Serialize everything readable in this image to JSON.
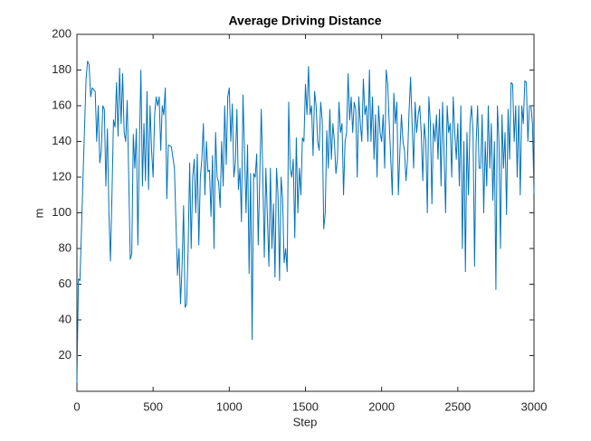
{
  "chart_data": {
    "type": "line",
    "title": "Average Driving Distance",
    "x_label": "Step",
    "y_label": "m",
    "xlim": [
      0,
      3000
    ],
    "xticks": [
      0,
      500,
      1000,
      1500,
      2000,
      2500,
      3000
    ],
    "ylim": [
      0,
      200
    ],
    "yticks": [
      20,
      40,
      60,
      80,
      100,
      120,
      140,
      160,
      180,
      200
    ],
    "grid": false,
    "color": "#0072bd",
    "x": [
      0,
      10,
      20,
      40,
      60,
      70,
      80,
      90,
      100,
      110,
      120,
      130,
      140,
      150,
      160,
      170,
      180,
      190,
      200,
      210,
      220,
      230,
      240,
      250,
      260,
      270,
      280,
      290,
      300,
      310,
      320,
      330,
      340,
      350,
      360,
      370,
      380,
      390,
      400,
      410,
      420,
      430,
      440,
      450,
      460,
      470,
      480,
      490,
      500,
      510,
      520,
      530,
      540,
      550,
      560,
      570,
      580,
      590,
      600,
      620,
      640,
      660,
      670,
      680,
      690,
      700,
      710,
      720,
      730,
      740,
      750,
      760,
      770,
      780,
      790,
      800,
      810,
      820,
      830,
      840,
      850,
      860,
      870,
      880,
      890,
      900,
      910,
      920,
      930,
      940,
      950,
      960,
      970,
      980,
      990,
      1000,
      1010,
      1020,
      1030,
      1040,
      1050,
      1060,
      1070,
      1080,
      1090,
      1100,
      1110,
      1120,
      1130,
      1140,
      1150,
      1160,
      1170,
      1180,
      1190,
      1200,
      1210,
      1220,
      1230,
      1240,
      1250,
      1260,
      1270,
      1280,
      1290,
      1300,
      1310,
      1320,
      1330,
      1340,
      1350,
      1360,
      1370,
      1380,
      1390,
      1400,
      1410,
      1420,
      1430,
      1440,
      1450,
      1460,
      1470,
      1480,
      1490,
      1500,
      1510,
      1520,
      1530,
      1540,
      1550,
      1560,
      1570,
      1580,
      1590,
      1600,
      1610,
      1620,
      1630,
      1640,
      1650,
      1660,
      1670,
      1680,
      1690,
      1700,
      1710,
      1720,
      1730,
      1740,
      1750,
      1760,
      1770,
      1780,
      1790,
      1800,
      1810,
      1820,
      1830,
      1840,
      1850,
      1860,
      1870,
      1880,
      1890,
      1900,
      1910,
      1920,
      1930,
      1940,
      1950,
      1960,
      1970,
      1980,
      1990,
      2000,
      2010,
      2020,
      2030,
      2040,
      2050,
      2060,
      2070,
      2080,
      2090,
      2100,
      2110,
      2120,
      2130,
      2140,
      2150,
      2160,
      2170,
      2180,
      2190,
      2200,
      2210,
      2220,
      2230,
      2240,
      2250,
      2260,
      2270,
      2280,
      2290,
      2300,
      2310,
      2320,
      2330,
      2340,
      2350,
      2360,
      2370,
      2380,
      2390,
      2400,
      2410,
      2420,
      2430,
      2440,
      2450,
      2460,
      2470,
      2480,
      2490,
      2500,
      2510,
      2520,
      2530,
      2540,
      2550,
      2560,
      2570,
      2580,
      2590,
      2600,
      2610,
      2620,
      2630,
      2640,
      2650,
      2660,
      2670,
      2680,
      2690,
      2700,
      2710,
      2720,
      2730,
      2740,
      2750,
      2760,
      2770,
      2780,
      2790,
      2800,
      2810,
      2820,
      2830,
      2840,
      2850,
      2860,
      2870,
      2880,
      2890,
      2900,
      2910,
      2920,
      2930,
      2940,
      2950,
      2960,
      2970,
      2980,
      2990,
      3000
    ],
    "values": [
      5,
      63,
      62,
      120,
      175,
      185,
      183,
      165,
      170,
      169,
      168,
      140,
      160,
      128,
      135,
      160,
      158,
      115,
      147,
      100,
      73,
      110,
      152,
      148,
      173,
      143,
      181,
      150,
      178,
      145,
      140,
      163,
      120,
      74,
      77,
      144,
      125,
      147,
      82,
      138,
      180,
      115,
      150,
      118,
      168,
      113,
      160,
      135,
      120,
      155,
      165,
      160,
      165,
      135,
      160,
      155,
      170,
      108,
      138,
      137,
      125,
      65,
      80,
      49,
      70,
      104,
      47,
      49,
      80,
      128,
      80,
      120,
      130,
      100,
      133,
      82,
      120,
      130,
      150,
      110,
      140,
      123,
      124,
      98,
      132,
      80,
      145,
      120,
      117,
      103,
      140,
      115,
      160,
      127,
      165,
      170,
      140,
      161,
      120,
      128,
      158,
      113,
      125,
      95,
      166,
      135,
      100,
      138,
      66,
      122,
      29,
      122,
      120,
      133,
      82,
      120,
      158,
      122,
      75,
      125,
      98,
      70,
      125,
      80,
      105,
      64,
      125,
      110,
      62,
      120,
      108,
      72,
      80,
      67,
      162,
      125,
      120,
      130,
      86,
      142,
      100,
      125,
      110,
      142,
      140,
      172,
      155,
      182,
      155,
      160,
      132,
      168,
      160,
      140,
      135,
      162,
      152,
      91,
      100,
      146,
      125,
      158,
      130,
      150,
      140,
      122,
      130,
      162,
      145,
      150,
      110,
      140,
      145,
      178,
      152,
      165,
      145,
      162,
      158,
      120,
      165,
      150,
      140,
      175,
      155,
      160,
      140,
      180,
      140,
      165,
      130,
      155,
      120,
      160,
      145,
      140,
      155,
      125,
      180,
      172,
      150,
      130,
      110,
      167,
      150,
      162,
      110,
      135,
      155,
      140,
      135,
      118,
      130,
      157,
      176,
      150,
      125,
      162,
      145,
      155,
      160,
      145,
      118,
      150,
      140,
      100,
      165,
      150,
      105,
      150,
      140,
      155,
      130,
      158,
      115,
      162,
      133,
      100,
      160,
      145,
      150,
      120,
      165,
      145,
      130,
      150,
      115,
      160,
      80,
      140,
      67,
      145,
      110,
      150,
      160,
      145,
      70,
      138,
      160,
      125,
      125,
      155,
      100,
      140,
      115,
      160,
      125,
      150,
      107,
      140,
      57,
      160,
      140,
      80,
      155,
      125,
      145,
      99,
      158,
      130,
      173,
      172,
      140,
      160,
      120,
      160,
      110,
      160,
      150,
      174,
      173,
      140,
      160,
      160,
      150,
      111
    ]
  }
}
